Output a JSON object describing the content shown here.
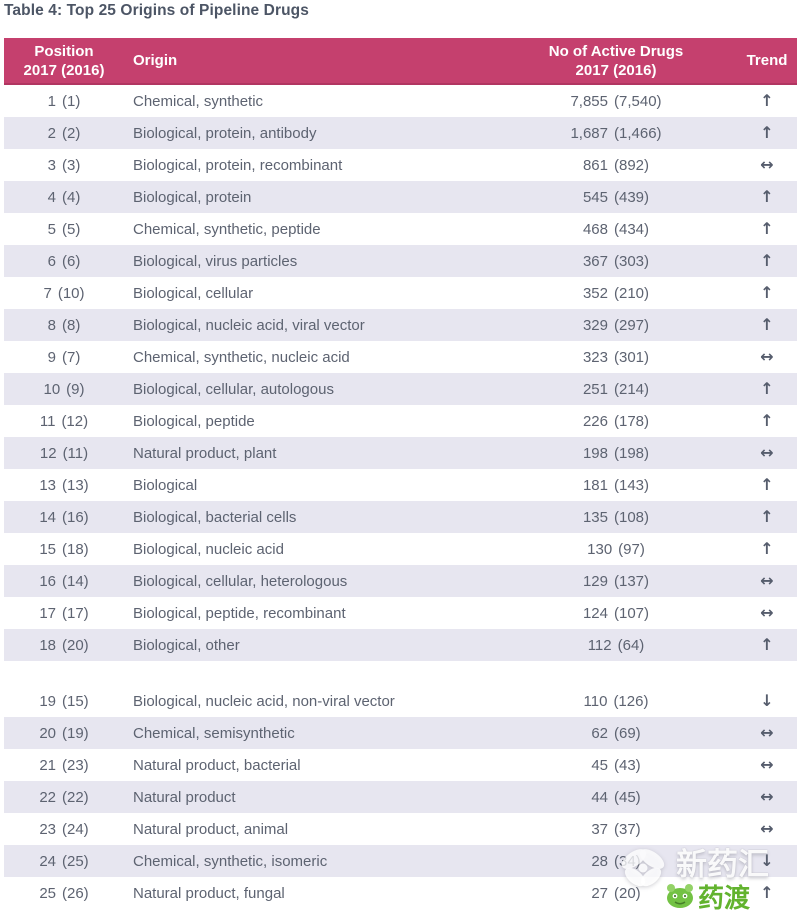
{
  "title": "Table 4: Top 25 Origins of Pipeline Drugs",
  "table": {
    "columns": {
      "position_line1": "Position",
      "position_line2": "2017 (2016)",
      "origin": "Origin",
      "drugs_line1": "No of Active Drugs",
      "drugs_line2": "2017 (2016)",
      "trend": "Trend"
    },
    "gap_before_position": "19",
    "trend_glyphs": {
      "up": "↑",
      "flat": "↔",
      "down": "↓"
    },
    "rows": [
      {
        "position": "1",
        "position_prev": "(1)",
        "origin": "Chemical, synthetic",
        "drugs": "7,855",
        "drugs_prev": "(7,540)",
        "trend": "up"
      },
      {
        "position": "2",
        "position_prev": "(2)",
        "origin": "Biological, protein, antibody",
        "drugs": "1,687",
        "drugs_prev": "(1,466)",
        "trend": "up"
      },
      {
        "position": "3",
        "position_prev": "(3)",
        "origin": "Biological, protein, recombinant",
        "drugs": "861",
        "drugs_prev": "(892)",
        "trend": "flat"
      },
      {
        "position": "4",
        "position_prev": "(4)",
        "origin": "Biological, protein",
        "drugs": "545",
        "drugs_prev": "(439)",
        "trend": "up"
      },
      {
        "position": "5",
        "position_prev": "(5)",
        "origin": "Chemical, synthetic, peptide",
        "drugs": "468",
        "drugs_prev": "(434)",
        "trend": "up"
      },
      {
        "position": "6",
        "position_prev": "(6)",
        "origin": "Biological, virus particles",
        "drugs": "367",
        "drugs_prev": "(303)",
        "trend": "up"
      },
      {
        "position": "7",
        "position_prev": "(10)",
        "origin": "Biological, cellular",
        "drugs": "352",
        "drugs_prev": "(210)",
        "trend": "up"
      },
      {
        "position": "8",
        "position_prev": "(8)",
        "origin": "Biological, nucleic acid, viral vector",
        "drugs": "329",
        "drugs_prev": "(297)",
        "trend": "up"
      },
      {
        "position": "9",
        "position_prev": "(7)",
        "origin": "Chemical, synthetic, nucleic acid",
        "drugs": "323",
        "drugs_prev": "(301)",
        "trend": "flat"
      },
      {
        "position": "10",
        "position_prev": "(9)",
        "origin": "Biological, cellular, autologous",
        "drugs": "251",
        "drugs_prev": "(214)",
        "trend": "up"
      },
      {
        "position": "11",
        "position_prev": "(12)",
        "origin": "Biological, peptide",
        "drugs": "226",
        "drugs_prev": "(178)",
        "trend": "up"
      },
      {
        "position": "12",
        "position_prev": "(11)",
        "origin": "Natural product, plant",
        "drugs": "198",
        "drugs_prev": "(198)",
        "trend": "flat"
      },
      {
        "position": "13",
        "position_prev": "(13)",
        "origin": "Biological",
        "drugs": "181",
        "drugs_prev": "(143)",
        "trend": "up"
      },
      {
        "position": "14",
        "position_prev": "(16)",
        "origin": "Biological, bacterial cells",
        "drugs": "135",
        "drugs_prev": "(108)",
        "trend": "up"
      },
      {
        "position": "15",
        "position_prev": "(18)",
        "origin": "Biological, nucleic acid",
        "drugs": "130",
        "drugs_prev": "(97)",
        "trend": "up"
      },
      {
        "position": "16",
        "position_prev": "(14)",
        "origin": "Biological, cellular, heterologous",
        "drugs": "129",
        "drugs_prev": "(137)",
        "trend": "flat"
      },
      {
        "position": "17",
        "position_prev": "(17)",
        "origin": "Biological, peptide, recombinant",
        "drugs": "124",
        "drugs_prev": "(107)",
        "trend": "flat"
      },
      {
        "position": "18",
        "position_prev": "(20)",
        "origin": "Biological, other",
        "drugs": "112",
        "drugs_prev": "(64)",
        "trend": "up"
      },
      {
        "position": "19",
        "position_prev": "(15)",
        "origin": "Biological, nucleic acid, non-viral vector",
        "drugs": "110",
        "drugs_prev": "(126)",
        "trend": "down"
      },
      {
        "position": "20",
        "position_prev": "(19)",
        "origin": "Chemical, semisynthetic",
        "drugs": "62",
        "drugs_prev": "(69)",
        "trend": "flat"
      },
      {
        "position": "21",
        "position_prev": "(23)",
        "origin": "Natural product, bacterial",
        "drugs": "45",
        "drugs_prev": "(43)",
        "trend": "flat"
      },
      {
        "position": "22",
        "position_prev": "(22)",
        "origin": "Natural product",
        "drugs": "44",
        "drugs_prev": "(45)",
        "trend": "flat"
      },
      {
        "position": "23",
        "position_prev": "(24)",
        "origin": "Natural product, animal",
        "drugs": "37",
        "drugs_prev": "(37)",
        "trend": "flat"
      },
      {
        "position": "24",
        "position_prev": "(25)",
        "origin": "Chemical, synthetic, isomeric",
        "drugs": "28",
        "drugs_prev": "(34)",
        "trend": "down"
      },
      {
        "position": "25",
        "position_prev": "(26)",
        "origin": "Natural product, fungal",
        "drugs": "27",
        "drugs_prev": "(20)",
        "trend": "up"
      }
    ]
  },
  "watermark": {
    "brand_top": "新药汇",
    "brand_bottom": "药渡"
  },
  "colors": {
    "header_bg": "#c5406e",
    "row_alt": "#e7e6f0",
    "text": "#5d6371",
    "title": "#4c5565",
    "arrow": "#565d6d",
    "watermark_green": "#62b32e"
  }
}
